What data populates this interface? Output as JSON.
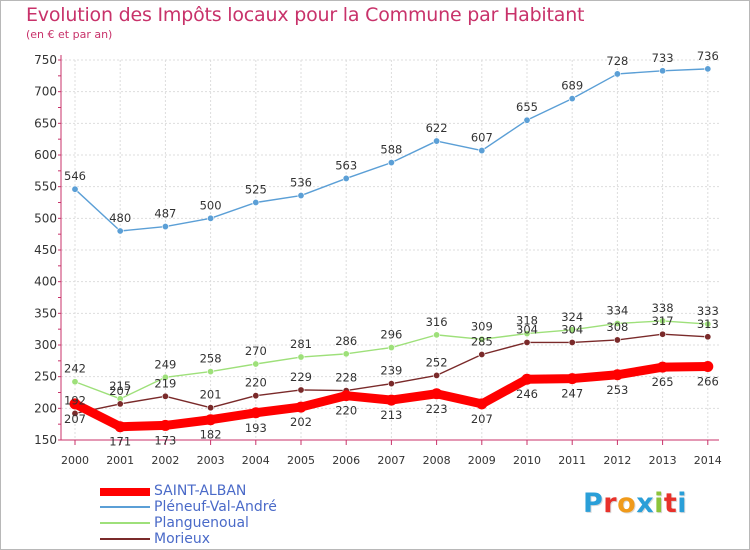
{
  "title": "Evolution des Impôts locaux pour la Commune par Habitant",
  "subtitle": "(en € et par an)",
  "logo": {
    "text": "Proxiti",
    "colors": [
      "#2a9fd8",
      "#e8312a",
      "#f09a1a",
      "#2a9fd8",
      "#8cc43a",
      "#e8312a",
      "#2a9fd8"
    ]
  },
  "colors": {
    "axis": "#c8326a",
    "tick_text": "#333333",
    "grid": "#dddddd",
    "value_text": "#333333"
  },
  "chart_data": {
    "type": "line",
    "title": "Evolution des Impôts locaux pour la Commune par Habitant",
    "subtitle": "(en € et par an)",
    "x": [
      2000,
      2001,
      2002,
      2003,
      2004,
      2005,
      2006,
      2007,
      2008,
      2009,
      2010,
      2011,
      2012,
      2013,
      2014
    ],
    "ylim": [
      150,
      750
    ],
    "yticks": [
      150,
      200,
      250,
      300,
      350,
      400,
      450,
      500,
      550,
      600,
      650,
      700,
      750
    ],
    "grid": true,
    "legend_position": "bottom-left",
    "series": [
      {
        "name": "SAINT-ALBAN",
        "color": "#ff0000",
        "emphasis": true,
        "values": [
          207,
          171,
          173,
          182,
          193,
          202,
          220,
          213,
          223,
          207,
          246,
          247,
          253,
          265,
          266
        ]
      },
      {
        "name": "Pléneuf-Val-André",
        "color": "#5b9fd6",
        "values": [
          546,
          480,
          487,
          500,
          525,
          536,
          563,
          588,
          622,
          607,
          655,
          689,
          728,
          733,
          736
        ]
      },
      {
        "name": "Planguenoual",
        "color": "#9ee07a",
        "values": [
          242,
          215,
          249,
          258,
          270,
          281,
          286,
          296,
          316,
          309,
          318,
          324,
          334,
          338,
          333
        ]
      },
      {
        "name": "Morieux",
        "color": "#7a2a2a",
        "values": [
          192,
          207,
          219,
          201,
          220,
          229,
          228,
          239,
          252,
          285,
          304,
          304,
          308,
          317,
          313
        ]
      }
    ]
  }
}
